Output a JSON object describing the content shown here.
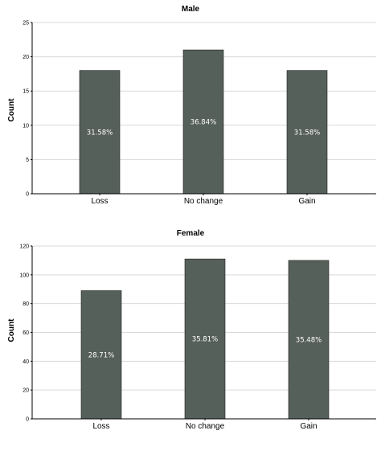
{
  "chart_data": [
    {
      "type": "bar",
      "title": "Male",
      "ylabel": "Count",
      "xlabel": "",
      "categories": [
        "Loss",
        "No change",
        "Gain"
      ],
      "values": [
        18,
        21,
        18
      ],
      "data_labels": [
        "31.58%",
        "36.84%",
        "31.58%"
      ],
      "ylim": [
        0,
        25
      ],
      "yticks": [
        0,
        5,
        10,
        15,
        20,
        25
      ],
      "grid": true,
      "bar_color": "#56605a"
    },
    {
      "type": "bar",
      "title": "Female",
      "ylabel": "Count",
      "xlabel": "",
      "categories": [
        "Loss",
        "No change",
        "Gain"
      ],
      "values": [
        89,
        111,
        110
      ],
      "data_labels": [
        "28.71%",
        "35.81%",
        "35.48%"
      ],
      "ylim": [
        0,
        120
      ],
      "yticks": [
        0,
        20,
        40,
        60,
        80,
        100,
        120
      ],
      "grid": true,
      "bar_color": "#56605a"
    }
  ]
}
